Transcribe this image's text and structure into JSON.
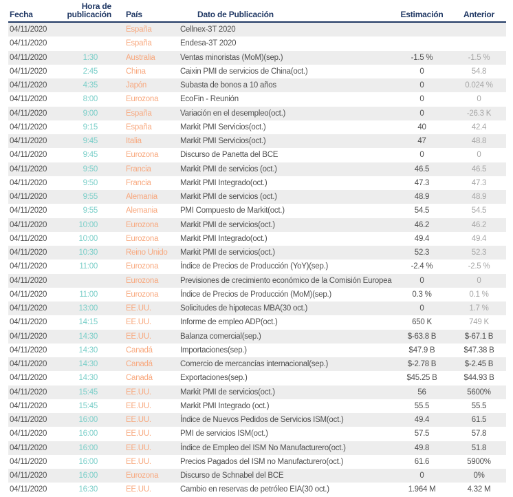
{
  "colors": {
    "header_text": "#203864",
    "header_border": "#203864",
    "row_alt_bg": "#EDEDED",
    "text_primary": "#4F4F4F",
    "time_color": "#7BCFC9",
    "country_color": "#F8A87E",
    "anterior_muted": "#A6A6A6"
  },
  "table": {
    "columns": [
      {
        "key": "fecha",
        "label": "Fecha"
      },
      {
        "key": "hora",
        "label": "Hora de publicación"
      },
      {
        "key": "pais",
        "label": "País"
      },
      {
        "key": "dato",
        "label": "Dato de Publicación"
      },
      {
        "key": "estimacion",
        "label": "Estimación"
      },
      {
        "key": "anterior",
        "label": "Anterior"
      }
    ],
    "rows": [
      {
        "fecha": "04/11/2020",
        "hora": "",
        "pais": "España",
        "dato": "Cellnex-3T 2020",
        "estimacion": "",
        "anterior": "",
        "anterior_muted": true
      },
      {
        "fecha": "04/11/2020",
        "hora": "",
        "pais": "España",
        "dato": "Endesa-3T 2020",
        "estimacion": "",
        "anterior": "",
        "anterior_muted": true
      },
      {
        "fecha": "04/11/2020",
        "hora": "1:30",
        "pais": "Australia",
        "dato": "Ventas minoristas (MoM)(sep.)",
        "estimacion": "-1.5 %",
        "anterior": "-1.5 %",
        "anterior_muted": true
      },
      {
        "fecha": "04/11/2020",
        "hora": "2:45",
        "pais": "China",
        "dato": "Caixin PMI de servicios de China(oct.)",
        "estimacion": "0",
        "anterior": "54.8",
        "anterior_muted": true
      },
      {
        "fecha": "04/11/2020",
        "hora": "4:35",
        "pais": "Japón",
        "dato": "Subasta de bonos a 10 años",
        "estimacion": "0",
        "anterior": "0.024 %",
        "anterior_muted": true
      },
      {
        "fecha": "04/11/2020",
        "hora": "8:00",
        "pais": "Eurozona",
        "dato": "EcoFin - Reunión",
        "estimacion": "0",
        "anterior": "0",
        "anterior_muted": true
      },
      {
        "fecha": "04/11/2020",
        "hora": "9:00",
        "pais": "España",
        "dato": "Variación en el desempleo(oct.)",
        "estimacion": "0",
        "anterior": "-26.3 K",
        "anterior_muted": true
      },
      {
        "fecha": "04/11/2020",
        "hora": "9:15",
        "pais": "España",
        "dato": "Markit PMI Servicios(oct.)",
        "estimacion": "40",
        "anterior": "42.4",
        "anterior_muted": true
      },
      {
        "fecha": "04/11/2020",
        "hora": "9:45",
        "pais": "Italia",
        "dato": "Markit PMI Servicios(oct.)",
        "estimacion": "47",
        "anterior": "48.8",
        "anterior_muted": true
      },
      {
        "fecha": "04/11/2020",
        "hora": "9:45",
        "pais": "Eurozona",
        "dato": "Discurso de Panetta del BCE",
        "estimacion": "0",
        "anterior": "0",
        "anterior_muted": true
      },
      {
        "fecha": "04/11/2020",
        "hora": "9:50",
        "pais": "Francia",
        "dato": "Markit PMI de servicios (oct.)",
        "estimacion": "46.5",
        "anterior": "46.5",
        "anterior_muted": true
      },
      {
        "fecha": "04/11/2020",
        "hora": "9:50",
        "pais": "Francia",
        "dato": "Markit PMI Integrado(oct.)",
        "estimacion": "47.3",
        "anterior": "47.3",
        "anterior_muted": true
      },
      {
        "fecha": "04/11/2020",
        "hora": "9:55",
        "pais": "Alemania",
        "dato": "Markit PMI de servicios (oct.)",
        "estimacion": "48.9",
        "anterior": "48.9",
        "anterior_muted": true
      },
      {
        "fecha": "04/11/2020",
        "hora": "9:55",
        "pais": "Alemania",
        "dato": "PMI Compuesto de Markit(oct.)",
        "estimacion": "54.5",
        "anterior": "54.5",
        "anterior_muted": true
      },
      {
        "fecha": "04/11/2020",
        "hora": "10:00",
        "pais": "Eurozona",
        "dato": "Markit PMI de servicios(oct.)",
        "estimacion": "46.2",
        "anterior": "46.2",
        "anterior_muted": true
      },
      {
        "fecha": "04/11/2020",
        "hora": "10:00",
        "pais": "Eurozona",
        "dato": "Markit PMI Integrado(oct.)",
        "estimacion": "49.4",
        "anterior": "49.4",
        "anterior_muted": true
      },
      {
        "fecha": "04/11/2020",
        "hora": "10:30",
        "pais": "Reino Unido",
        "dato": "Markit PMI de servicios(oct.)",
        "estimacion": "52.3",
        "anterior": "52.3",
        "anterior_muted": true
      },
      {
        "fecha": "04/11/2020",
        "hora": "11:00",
        "pais": "Eurozona",
        "dato": "Índice de Precios de Producción (YoY)(sep.)",
        "estimacion": "-2.4 %",
        "anterior": "-2.5 %",
        "anterior_muted": true
      },
      {
        "fecha": "04/11/2020",
        "hora": "",
        "pais": "Eurozona",
        "dato": "Previsiones de crecimiento económico de la Comisión Europea",
        "estimacion": "0",
        "anterior": "0",
        "anterior_muted": true
      },
      {
        "fecha": "04/11/2020",
        "hora": "11:00",
        "pais": "Eurozona",
        "dato": "Índice de Precios de Producción (MoM)(sep.)",
        "estimacion": "0.3 %",
        "anterior": "0.1 %",
        "anterior_muted": true
      },
      {
        "fecha": "04/11/2020",
        "hora": "13:00",
        "pais": "EE.UU.",
        "dato": "Solicitudes de hipotecas MBA(30 oct.)",
        "estimacion": "0",
        "anterior": "1.7 %",
        "anterior_muted": true
      },
      {
        "fecha": "04/11/2020",
        "hora": "14:15",
        "pais": "EE.UU.",
        "dato": "Informe de empleo ADP(oct.)",
        "estimacion": "650 K",
        "anterior": "749 K",
        "anterior_muted": true
      },
      {
        "fecha": "04/11/2020",
        "hora": "14:30",
        "pais": "EE.UU.",
        "dato": "Balanza comercial(sep.)",
        "estimacion": "$-63.8 B",
        "anterior": "$-67.1 B",
        "anterior_muted": false
      },
      {
        "fecha": "04/11/2020",
        "hora": "14:30",
        "pais": "Canadá",
        "dato": "Importaciones(sep.)",
        "estimacion": "$47.9 B",
        "anterior": "$47.38 B",
        "anterior_muted": false
      },
      {
        "fecha": "04/11/2020",
        "hora": "14:30",
        "pais": "Canadá",
        "dato": "Comercio de mercancías internacional(sep.)",
        "estimacion": "$-2.78 B",
        "anterior": "$-2.45 B",
        "anterior_muted": false
      },
      {
        "fecha": "04/11/2020",
        "hora": "14:30",
        "pais": "Canadá",
        "dato": "Exportaciones(sep.)",
        "estimacion": "$45.25 B",
        "anterior": "$44.93 B",
        "anterior_muted": false
      },
      {
        "fecha": "04/11/2020",
        "hora": "15:45",
        "pais": "EE.UU.",
        "dato": "Markit PMI de servicios(oct.)",
        "estimacion": "56",
        "anterior": "5600%",
        "anterior_muted": false
      },
      {
        "fecha": "04/11/2020",
        "hora": "15:45",
        "pais": "EE.UU.",
        "dato": "Markit PMI Integrado (oct.)",
        "estimacion": "55.5",
        "anterior": "55.5",
        "anterior_muted": false
      },
      {
        "fecha": "04/11/2020",
        "hora": "16:00",
        "pais": "EE.UU.",
        "dato": "Índice de Nuevos Pedidos de Servicios ISM(oct.)",
        "estimacion": "49.4",
        "anterior": "61.5",
        "anterior_muted": false
      },
      {
        "fecha": "04/11/2020",
        "hora": "16:00",
        "pais": "EE.UU.",
        "dato": "PMI de servicios ISM(oct.)",
        "estimacion": "57.5",
        "anterior": "57.8",
        "anterior_muted": false
      },
      {
        "fecha": "04/11/2020",
        "hora": "16:00",
        "pais": "EE.UU.",
        "dato": "Índice de Empleo del ISM No Manufacturero(oct.)",
        "estimacion": "49.8",
        "anterior": "51.8",
        "anterior_muted": false
      },
      {
        "fecha": "04/11/2020",
        "hora": "16:00",
        "pais": "EE.UU.",
        "dato": "Precios Pagados del ISM no Manufacturero(oct.)",
        "estimacion": "61.6",
        "anterior": "5900%",
        "anterior_muted": false
      },
      {
        "fecha": "04/11/2020",
        "hora": "16:00",
        "pais": "Eurozona",
        "dato": "Discurso de Schnabel del BCE",
        "estimacion": "0",
        "anterior": "0%",
        "anterior_muted": false
      },
      {
        "fecha": "04/11/2020",
        "hora": "16:30",
        "pais": "EE.UU.",
        "dato": "Cambio en reservas de petróleo EIA(30 oct.)",
        "estimacion": "1.964 M",
        "anterior": "4.32 M",
        "anterior_muted": false
      }
    ]
  }
}
